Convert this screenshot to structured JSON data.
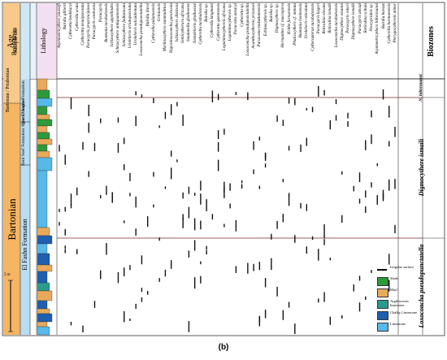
{
  "headers": {
    "age": "Age",
    "rock_units": "Rock units",
    "sample_no": "Sample no.",
    "lithology": "Lithology",
    "biozones": "Biozones"
  },
  "ages": {
    "upper": "Bartonian / Priabonian",
    "lower": "Bartonian"
  },
  "formations": {
    "upper": "Qasr El Sagha Formation",
    "upper_member": "Birket Qarun Member",
    "middle": "Beni Suef Formation / Qarra Member",
    "lower": "El Fashn Formation"
  },
  "biozones": [
    {
      "name": "N. hiltermanni"
    },
    {
      "name": "Digmocythere ismaili"
    },
    {
      "name": "Loxoconcha pseudopunctatella"
    }
  ],
  "scale_label": "5 m",
  "species": [
    "Asymmetricythere youssefi",
    "Bairdia gliberti",
    "Cytheretta bouhkaryi",
    "Cytherella orata",
    "Cytheretta tenuipunctata",
    "Paracypris proprincipiosa",
    "Paracypris contracta",
    "Paracypris",
    "Buntonia tarabulsensis",
    "Schizocythere appelloides",
    "Schizocythere antiquannensis",
    "Schizocythere fadlanicata",
    "Uroleberis striatopunctata",
    "Uroleberis sulcaidentata",
    "Loxoconcha pseudopunctatella",
    "Bairdia ilaroi",
    "Cytherella pulamoensis",
    "Grinioneis",
    "Martinocythere nummulitica",
    "Nigeroloxoconcha puncticola",
    "Schizocythere distincta",
    "Semicytherura africana",
    "Soudanella gbolloense",
    "Xestoleberis gbolloense",
    "Cytherella tarabulsensis",
    "Bairdia sp.",
    "Cytherella kingmani",
    "Cytheretta quennensis",
    "Leguminocythereis africana",
    "Leguminocythereis sp.",
    "Paracosta ansaryi",
    "Cytheretta sp.",
    "Loxoconcha pseudopunctatella",
    "Acanthocythereis prizenssi",
    "Paracosta mokattamensis",
    "Echinocythereis sp.",
    "Bairdia sp.",
    "Digmocythere sp.",
    "Hermanites cf. macropora",
    "Krithe furnarensis",
    "Phalcocythere cf. minuta",
    "Buntonia beninensis",
    "Uroleberis reticulata",
    "Cytheropteron tarabulsensis",
    "Paracypris kegeri",
    "Reticulina elevata",
    "Reticulina ismaili",
    "Loxoconcha tarabulsensis",
    "Digmocythere emanni",
    "Paracypris eskeri",
    "Digmocythere ismaili",
    "Paracypris ateaqi",
    "Reticulina scitula",
    "Neocyprideis sp.",
    "Asymmetricythere hiltermanni",
    "Bairdia huesae",
    "Cytherella harmanensis",
    "Pterygocythereis minor"
  ],
  "legend": [
    {
      "label": "Irrigular surface",
      "color": "#000000",
      "kind": "line"
    },
    {
      "label": "Shale",
      "color": "#2e9a3a",
      "kind": "box"
    },
    {
      "label": "Marl",
      "color": "#e9a95a",
      "kind": "box"
    },
    {
      "label": "Argillaceous limestone",
      "color": "#2b9b8e",
      "kind": "box"
    },
    {
      "label": "Chalky Limestone",
      "color": "#1f5fb0",
      "kind": "box"
    },
    {
      "label": "Limestone",
      "color": "#56b9e8",
      "kind": "box"
    }
  ],
  "caption": "(b)"
}
